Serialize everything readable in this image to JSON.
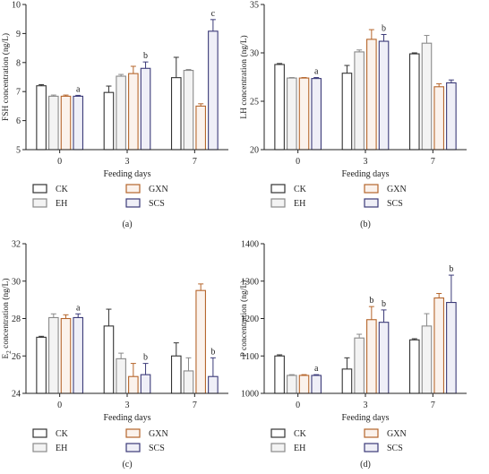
{
  "colors": {
    "CK": "#333333",
    "EH": "#8a8a8a",
    "GXN": "#b5652b",
    "SCS": "#3b3a78",
    "fill_CK": "#ffffff",
    "fill_EH": "#f3f3f3",
    "fill_GXN": "#fbf2ec",
    "fill_SCS": "#efeff7"
  },
  "legend": [
    "CK",
    "EH",
    "GXN",
    "SCS"
  ],
  "chart_data": [
    {
      "type": "bar",
      "panel_label": "(a)",
      "ylabel": "FSH concentration (ng/L)",
      "xlabel": "Feeding days",
      "categories": [
        "0",
        "3",
        "7"
      ],
      "ylim": [
        5,
        10
      ],
      "yticks": [
        "5",
        "6",
        "7",
        "8",
        "9",
        "10"
      ],
      "series": [
        {
          "name": "CK",
          "values": [
            7.2,
            6.97,
            7.48
          ],
          "errors": [
            0.04,
            0.22,
            0.7
          ]
        },
        {
          "name": "EH",
          "values": [
            6.84,
            7.53,
            7.73
          ],
          "errors": [
            0.04,
            0.06,
            0.03
          ]
        },
        {
          "name": "GXN",
          "values": [
            6.84,
            7.62,
            6.5
          ],
          "errors": [
            0.04,
            0.25,
            0.08
          ]
        },
        {
          "name": "SCS",
          "values": [
            6.84,
            7.8,
            9.08
          ],
          "errors": [
            0.03,
            0.22,
            0.4
          ]
        }
      ],
      "annotations": [
        {
          "category": "0",
          "series": "SCS",
          "text": "a"
        },
        {
          "category": "3",
          "series": "SCS",
          "text": "b"
        },
        {
          "category": "7",
          "series": "SCS",
          "text": "c"
        }
      ]
    },
    {
      "type": "bar",
      "panel_label": "(b)",
      "ylabel": "LH concentration (ng/L)",
      "xlabel": "Feeding days",
      "categories": [
        "0",
        "3",
        "7"
      ],
      "ylim": [
        20,
        35
      ],
      "yticks": [
        "20",
        "25",
        "30",
        "35"
      ],
      "series": [
        {
          "name": "CK",
          "values": [
            28.8,
            27.9,
            29.9
          ],
          "errors": [
            0.1,
            0.8,
            0.1
          ]
        },
        {
          "name": "EH",
          "values": [
            27.4,
            30.1,
            31.0
          ],
          "errors": [
            0.05,
            0.2,
            0.8
          ]
        },
        {
          "name": "GXN",
          "values": [
            27.4,
            31.4,
            26.5
          ],
          "errors": [
            0.05,
            1.0,
            0.3
          ]
        },
        {
          "name": "SCS",
          "values": [
            27.35,
            31.2,
            26.9
          ],
          "errors": [
            0.1,
            0.7,
            0.3
          ]
        }
      ],
      "annotations": [
        {
          "category": "0",
          "series": "SCS",
          "text": "a"
        },
        {
          "category": "3",
          "series": "SCS",
          "text": "b"
        }
      ]
    },
    {
      "type": "bar",
      "panel_label": "(c)",
      "ylabel": "E2 concentration (ng/L)",
      "ylabel_main": "E",
      "ylabel_sub": "2",
      "ylabel_rest": " concentration (ng/L)",
      "xlabel": "Feeding days",
      "categories": [
        "0",
        "3",
        "7"
      ],
      "ylim": [
        24,
        32
      ],
      "yticks": [
        "24",
        "26",
        "28",
        "30",
        "32"
      ],
      "series": [
        {
          "name": "CK",
          "values": [
            27.0,
            27.6,
            26.0
          ],
          "errors": [
            0.05,
            0.9,
            0.7
          ]
        },
        {
          "name": "EH",
          "values": [
            28.05,
            25.85,
            25.2
          ],
          "errors": [
            0.2,
            0.3,
            0.7
          ]
        },
        {
          "name": "GXN",
          "values": [
            28.0,
            24.9,
            29.5
          ],
          "errors": [
            0.2,
            0.7,
            0.35
          ]
        },
        {
          "name": "SCS",
          "values": [
            28.05,
            25.0,
            24.9
          ],
          "errors": [
            0.2,
            0.6,
            1.0
          ]
        }
      ],
      "annotations": [
        {
          "category": "0",
          "series": "SCS",
          "text": "a"
        },
        {
          "category": "3",
          "series": "SCS",
          "text": "b"
        },
        {
          "category": "7",
          "series": "SCS",
          "text": "b"
        }
      ]
    },
    {
      "type": "bar",
      "panel_label": "(d)",
      "ylabel": "P concentration (ng/L)",
      "xlabel": "Feeding days",
      "categories": [
        "0",
        "3",
        "7"
      ],
      "ylim": [
        1000,
        1400
      ],
      "yticks": [
        "1000",
        "1100",
        "1200",
        "1300",
        "1400"
      ],
      "series": [
        {
          "name": "CK",
          "values": [
            1100,
            1065,
            1143
          ],
          "errors": [
            3,
            30,
            3
          ]
        },
        {
          "name": "EH",
          "values": [
            1048,
            1148,
            1180
          ],
          "errors": [
            2,
            10,
            33
          ]
        },
        {
          "name": "GXN",
          "values": [
            1048,
            1197,
            1255
          ],
          "errors": [
            2,
            35,
            12
          ]
        },
        {
          "name": "SCS",
          "values": [
            1048,
            1190,
            1243
          ],
          "errors": [
            2,
            33,
            73
          ]
        }
      ],
      "annotations": [
        {
          "category": "0",
          "series": "SCS",
          "text": "a"
        },
        {
          "category": "3",
          "series": "GXN",
          "text": "b"
        },
        {
          "category": "3",
          "series": "SCS",
          "text": "b"
        },
        {
          "category": "7",
          "series": "SCS",
          "text": "b"
        }
      ]
    }
  ]
}
